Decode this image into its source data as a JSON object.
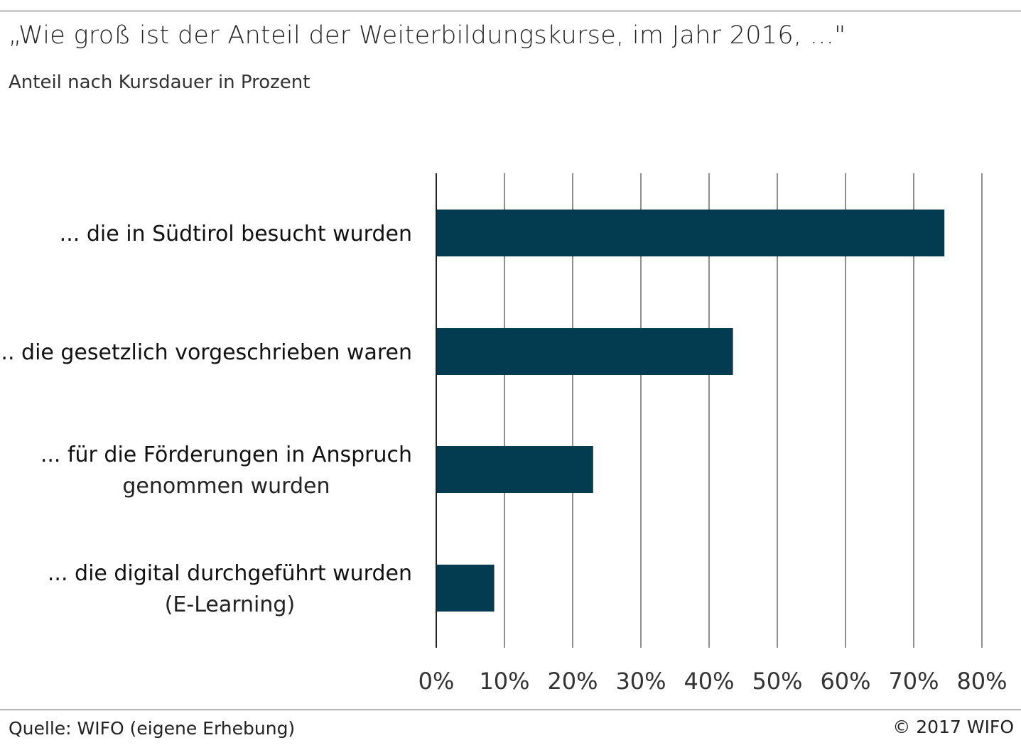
{
  "header": {
    "title": "„Wie groß ist der Anteil der Weiterbildungskurse, im Jahr 2016, ...\"",
    "subtitle": "Anteil nach Kursdauer in Prozent"
  },
  "footer": {
    "source": "Quelle: WIFO (eigene Erhebung)",
    "copyright": "© 2017 WIFO"
  },
  "colors": {
    "bar": "#033C50",
    "grid": "#555555",
    "axis": "#222222"
  },
  "chart_data": {
    "type": "bar",
    "orientation": "horizontal",
    "title": "„Wie groß ist der Anteil der Weiterbildungskurse, im Jahr 2016, ...\"",
    "subtitle": "Anteil nach Kursdauer in Prozent",
    "categories": [
      [
        "... die in Südtirol besucht wurden"
      ],
      [
        "... die gesetzlich vorgeschrieben waren"
      ],
      [
        "... für die Förderungen in Anspruch",
        "genommen wurden"
      ],
      [
        "... die digital durchgeführt wurden",
        "(E-Learning)"
      ]
    ],
    "values": [
      74.5,
      43.5,
      23,
      8.5
    ],
    "xlim": [
      0,
      80
    ],
    "xticks": [
      0,
      10,
      20,
      30,
      40,
      50,
      60,
      70,
      80
    ],
    "xtick_labels": [
      "0%",
      "10%",
      "20%",
      "30%",
      "40%",
      "50%",
      "60%",
      "70%",
      "80%"
    ],
    "xlabel": "",
    "ylabel": "",
    "grid": "vertical"
  }
}
